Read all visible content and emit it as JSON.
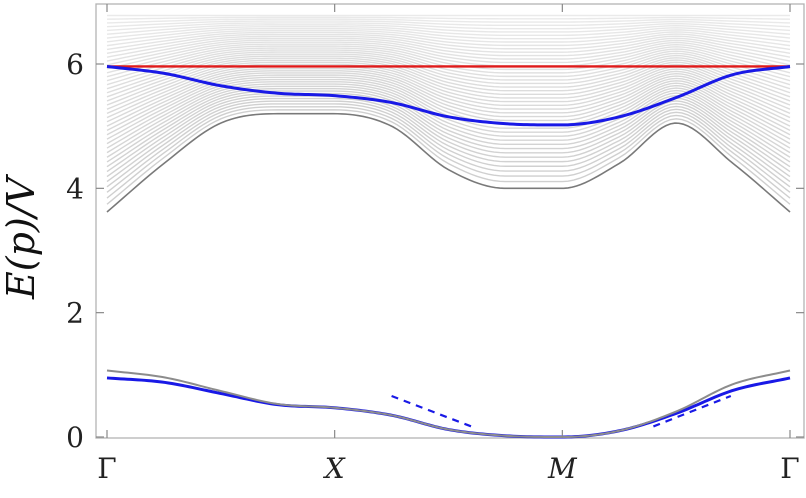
{
  "chart_data": {
    "type": "line",
    "title": "",
    "xlabel": "",
    "ylabel": "E(p)/V",
    "xticks": [
      "Γ",
      "X",
      "M",
      "Γ"
    ],
    "yticks": [
      0,
      2,
      4,
      6
    ],
    "ylim": [
      0,
      6.8
    ],
    "x_range": [
      0,
      3
    ],
    "grid": false,
    "legend": "none",
    "colors": {
      "band_continuum": "#8c8c8c",
      "blue": "#1919e6",
      "red": "#e01a1a"
    },
    "series": [
      {
        "style": "solid",
        "color": "#e01a1a",
        "x": [
          0,
          3
        ],
        "y": [
          5.96,
          5.96
        ]
      },
      {
        "style": "solid",
        "color": "#1919e6",
        "x": [
          0,
          0.25,
          0.5,
          0.75,
          1.0,
          1.25,
          1.5,
          1.75,
          2.0,
          2.25,
          2.5,
          2.75,
          3.0
        ],
        "y": [
          5.96,
          5.85,
          5.65,
          5.53,
          5.49,
          5.38,
          5.15,
          5.04,
          5.02,
          5.15,
          5.46,
          5.83,
          5.96
        ]
      },
      {
        "style": "solid",
        "color": "#1919e6",
        "x": [
          0,
          0.25,
          0.5,
          0.75,
          1.0,
          1.25,
          1.5,
          1.75,
          2.0,
          2.25,
          2.5,
          2.75,
          3.0
        ],
        "y": [
          0.95,
          0.88,
          0.7,
          0.52,
          0.47,
          0.35,
          0.12,
          0.02,
          0.0,
          0.1,
          0.38,
          0.75,
          0.95
        ]
      },
      {
        "style": "solid",
        "color": "#8c8c8c",
        "x": [
          0,
          0.25,
          0.5,
          0.75,
          1.0,
          1.25,
          1.5,
          1.75,
          2.0,
          2.25,
          2.5,
          2.75,
          3.0
        ],
        "y": [
          1.07,
          0.96,
          0.74,
          0.53,
          0.47,
          0.35,
          0.12,
          0.02,
          0.0,
          0.1,
          0.41,
          0.85,
          1.07
        ]
      },
      {
        "style": "dashed",
        "color": "#1919e6",
        "x": [
          1.25,
          1.6
        ],
        "y": [
          0.66,
          0.17
        ]
      },
      {
        "style": "dashed",
        "color": "#1919e6",
        "x": [
          2.4,
          2.74
        ],
        "y": [
          0.17,
          0.66
        ]
      },
      {
        "style": "band",
        "color": "#8c8c8c",
        "x": [
          0,
          0.25,
          0.5,
          0.75,
          1.0,
          1.25,
          1.5,
          1.75,
          2.0,
          2.25,
          2.5,
          2.75,
          3.0
        ],
        "y_low": [
          3.62,
          4.4,
          5.05,
          5.2,
          5.2,
          5.0,
          4.3,
          4.0,
          4.0,
          4.4,
          5.05,
          4.4,
          3.62
        ],
        "y_high": [
          6.78,
          6.78,
          6.78,
          6.78,
          6.78,
          6.78,
          6.78,
          6.78,
          6.78,
          6.78,
          6.78,
          6.78,
          6.78
        ]
      }
    ]
  }
}
